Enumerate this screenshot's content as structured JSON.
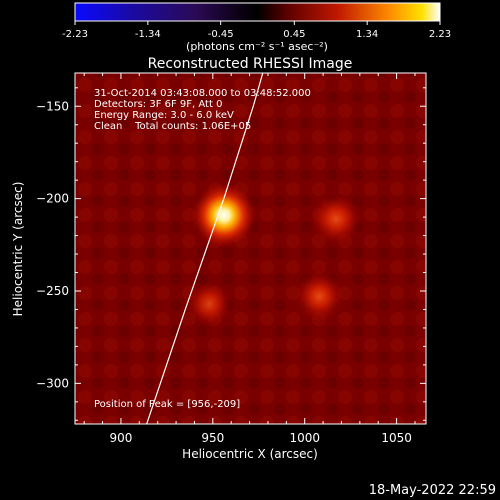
{
  "chart_data": {
    "type": "heatmap",
    "title": "Reconstructed RHESSI Image",
    "xlabel": "Heliocentric X (arcsec)",
    "ylabel": "Heliocentric Y (arcsec)",
    "xlim": [
      875,
      1066
    ],
    "ylim": [
      -322,
      -132
    ],
    "x_ticks": [
      900,
      950,
      1000,
      1050
    ],
    "y_ticks": [
      -150,
      -200,
      -250,
      -300
    ],
    "colorbar": {
      "label": "(photons cm⁻² s⁻¹ asec⁻²)",
      "range": [
        -2.23,
        2.23
      ],
      "ticks": [
        "-2.23",
        "-1.34",
        "-0.45",
        "0.45",
        "1.34",
        "2.23"
      ]
    },
    "annotations": [
      "31-Oct-2014 03:43:08.000 to 03:48:52.000",
      "Detectors: 3F 6F 9F, Att 0",
      "Energy Range: 3.0 - 6.0 keV",
      "Clean    Total counts: 1.06E+05",
      "Position of Peak = [956,-209]"
    ],
    "sources": [
      {
        "x": 956,
        "y": -209,
        "peak": 2.23
      },
      {
        "x": 1017,
        "y": -211,
        "peak": 1.35
      },
      {
        "x": 1008,
        "y": -253,
        "peak": 1.3
      },
      {
        "x": 948,
        "y": -257,
        "peak": 1.0
      }
    ],
    "limb_curve": [
      [
        914,
        -322
      ],
      [
        935,
        -260
      ],
      [
        956,
        -200
      ],
      [
        972,
        -150
      ],
      [
        985,
        -105
      ]
    ],
    "timestamp": "18-May-2022 22:59"
  }
}
